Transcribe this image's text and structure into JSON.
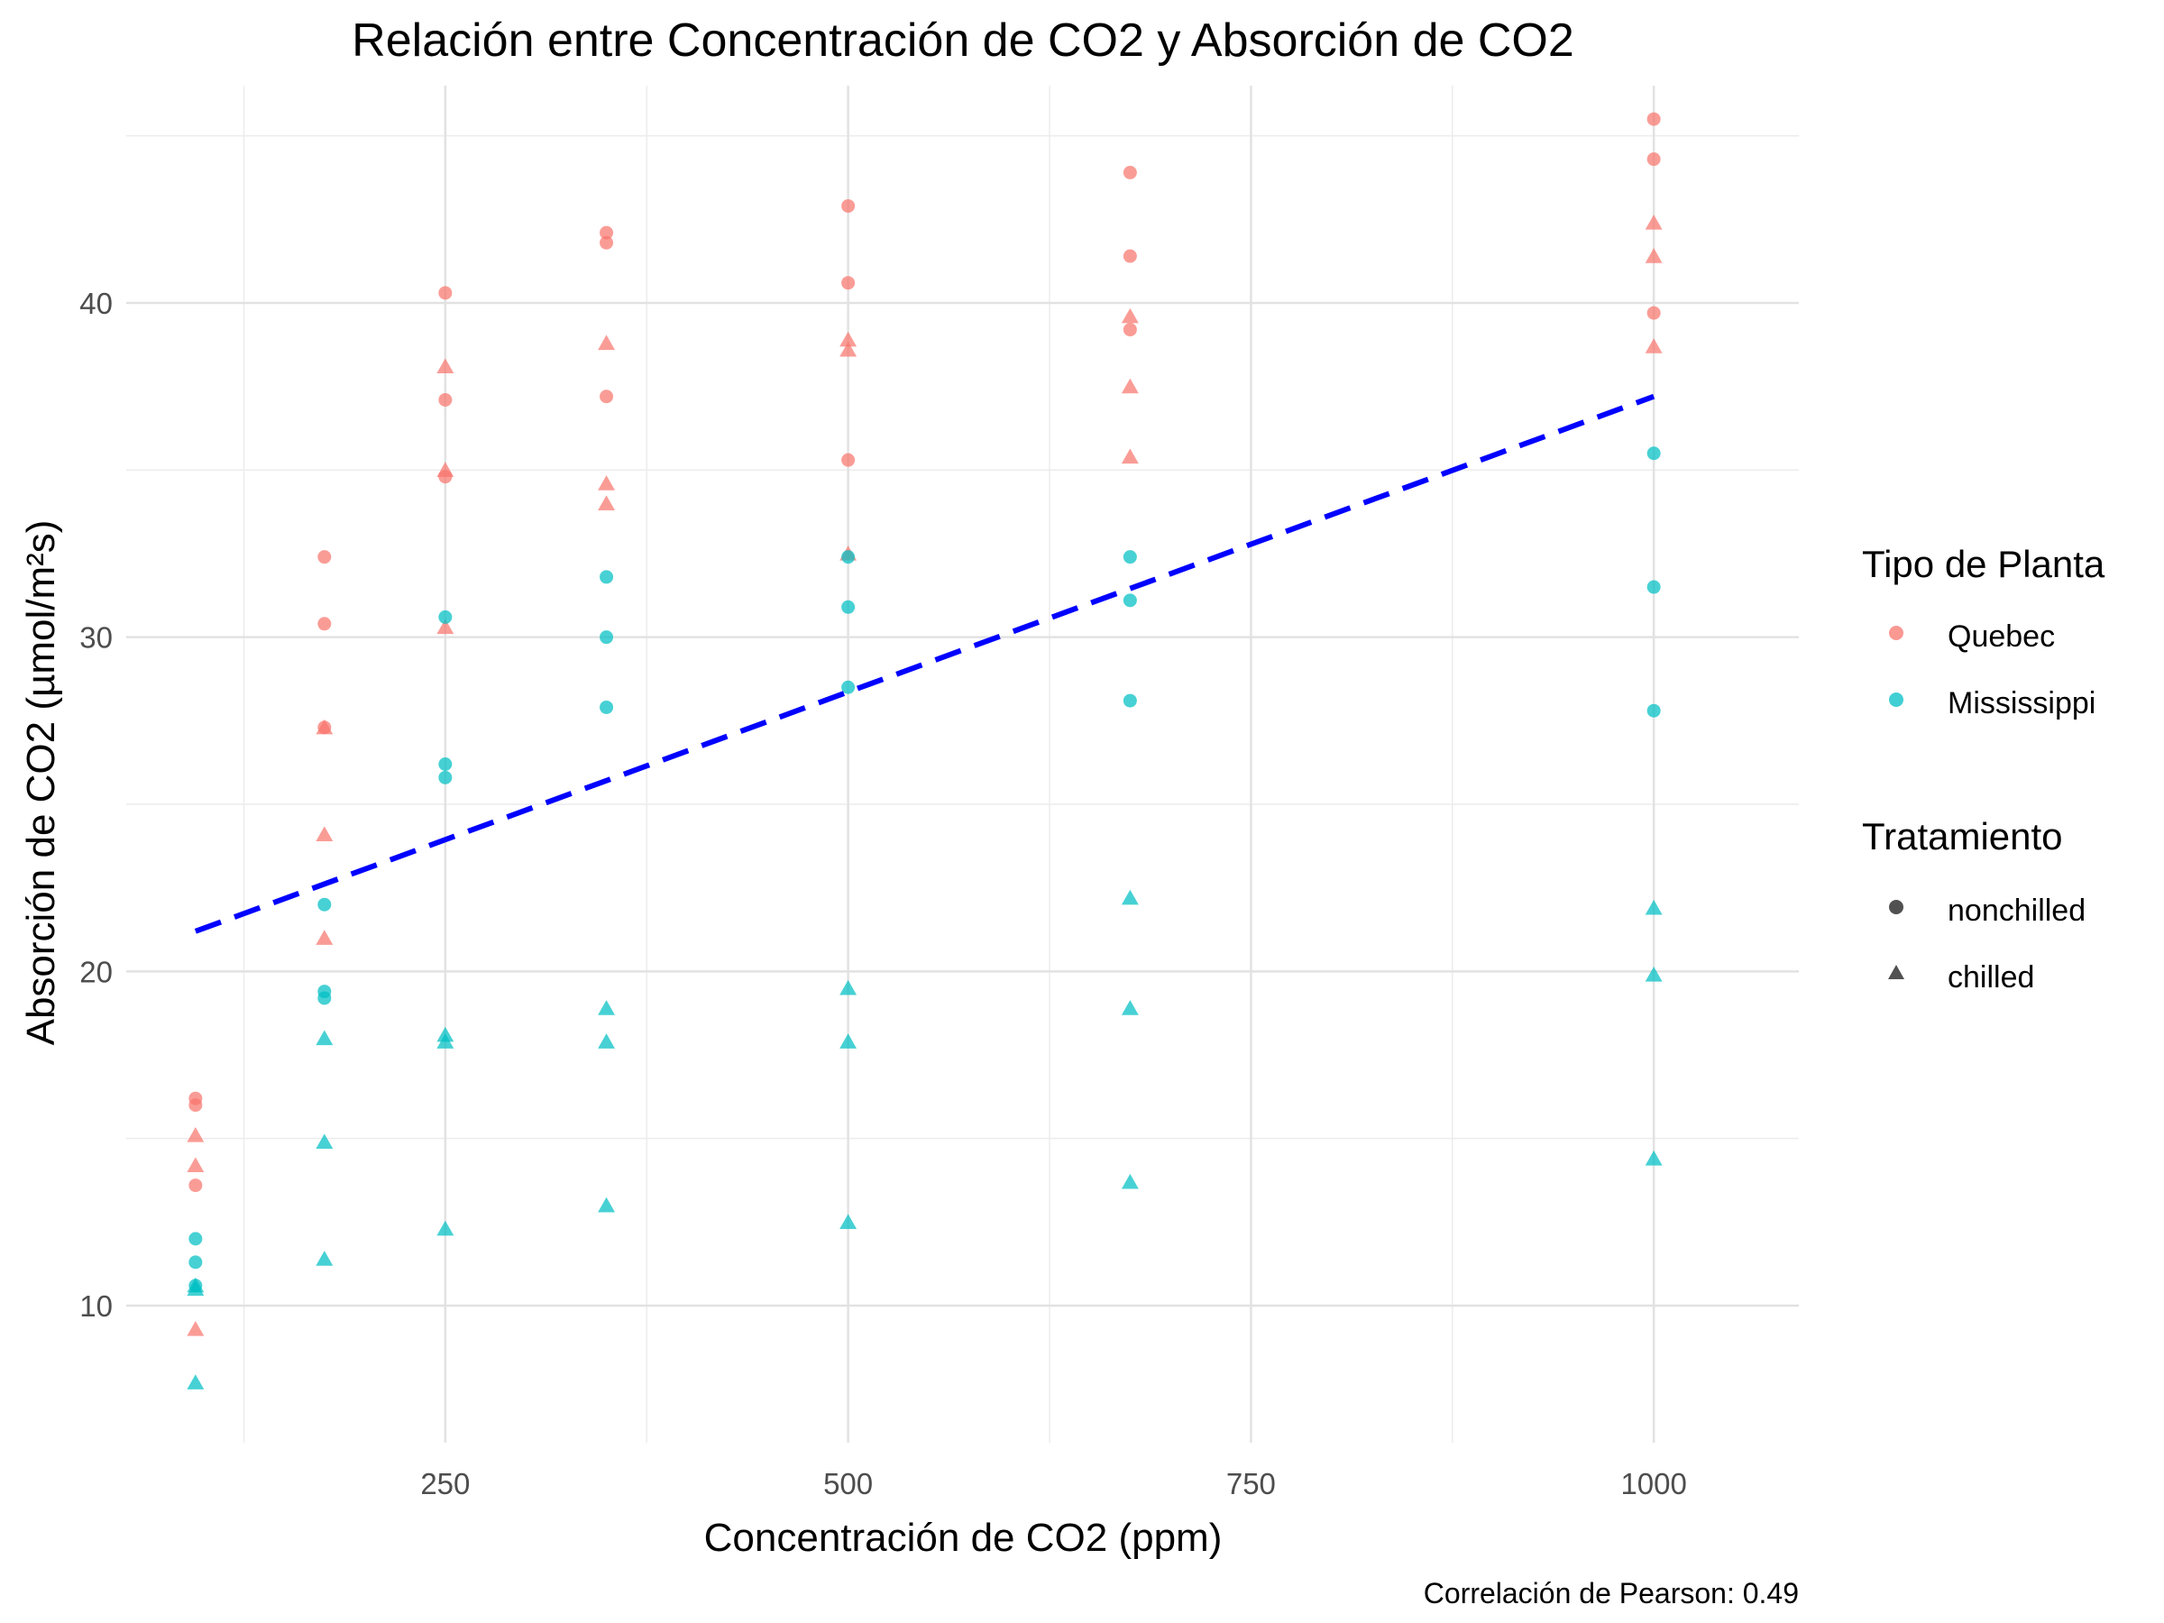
{
  "chart_data": {
    "type": "scatter",
    "title": "Relación entre Concentración de CO2 y Absorción de CO2",
    "xlabel": "Concentración de CO2 (ppm)",
    "ylabel": "Absorción de CO2 (µmol/m²s)",
    "caption": "Correlación de Pearson: 0.49",
    "xlim": [
      52,
      1090
    ],
    "ylim": [
      5.9,
      46.5
    ],
    "x_ticks": [
      250,
      500,
      750,
      1000
    ],
    "y_ticks": [
      10,
      20,
      30,
      40
    ],
    "grid": true,
    "legend_position": "right",
    "legends": [
      {
        "title": "Tipo de Planta",
        "entries": [
          {
            "label": "Quebec",
            "color": "#F8766D"
          },
          {
            "label": "Mississippi",
            "color": "#00BFC4"
          }
        ]
      },
      {
        "title": "Tratamiento",
        "entries": [
          {
            "label": "nonchilled",
            "shape": "circle"
          },
          {
            "label": "chilled",
            "shape": "triangle"
          }
        ]
      }
    ],
    "series": [
      {
        "type": "Quebec",
        "treatment": "nonchilled",
        "x": [
          95,
          95,
          95,
          175,
          175,
          175,
          250,
          250,
          250,
          350,
          350,
          350,
          500,
          500,
          500,
          675,
          675,
          675,
          1000,
          1000,
          1000
        ],
        "y": [
          16.0,
          13.6,
          16.2,
          30.4,
          27.3,
          32.4,
          34.8,
          37.1,
          40.3,
          37.2,
          41.8,
          42.1,
          35.3,
          40.6,
          42.9,
          39.2,
          41.4,
          43.9,
          39.7,
          44.3,
          45.5
        ]
      },
      {
        "type": "Quebec",
        "treatment": "chilled",
        "x": [
          95,
          95,
          95,
          175,
          175,
          175,
          250,
          250,
          250,
          350,
          350,
          350,
          500,
          500,
          500,
          675,
          675,
          675,
          1000,
          1000,
          1000
        ],
        "y": [
          14.2,
          9.3,
          15.1,
          24.1,
          27.3,
          21.0,
          30.3,
          35.0,
          38.1,
          34.6,
          38.8,
          34.0,
          32.5,
          38.6,
          38.9,
          35.4,
          37.5,
          39.6,
          38.7,
          42.4,
          41.4
        ]
      },
      {
        "type": "Mississippi",
        "treatment": "nonchilled",
        "x": [
          95,
          95,
          95,
          175,
          175,
          175,
          250,
          250,
          250,
          350,
          350,
          350,
          500,
          500,
          500,
          675,
          675,
          675,
          1000,
          1000,
          1000
        ],
        "y": [
          10.6,
          12.0,
          11.3,
          19.2,
          22.0,
          19.4,
          26.2,
          30.6,
          25.8,
          30.0,
          31.8,
          27.9,
          30.9,
          32.4,
          28.5,
          32.4,
          31.1,
          28.1,
          35.5,
          31.5,
          27.8
        ]
      },
      {
        "type": "Mississippi",
        "treatment": "chilled",
        "x": [
          95,
          95,
          95,
          175,
          175,
          175,
          250,
          250,
          250,
          350,
          350,
          350,
          500,
          500,
          500,
          675,
          675,
          675,
          1000,
          1000,
          1000
        ],
        "y": [
          10.5,
          7.7,
          10.6,
          14.9,
          11.4,
          18.0,
          18.1,
          12.3,
          17.9,
          18.9,
          13.0,
          17.9,
          19.5,
          12.5,
          17.9,
          22.2,
          13.7,
          18.9,
          21.9,
          14.4,
          19.9
        ]
      }
    ],
    "fit_line": {
      "x": [
        95,
        1000
      ],
      "y": [
        21.2,
        37.2
      ],
      "color": "#0000FF",
      "style": "dashed"
    }
  }
}
